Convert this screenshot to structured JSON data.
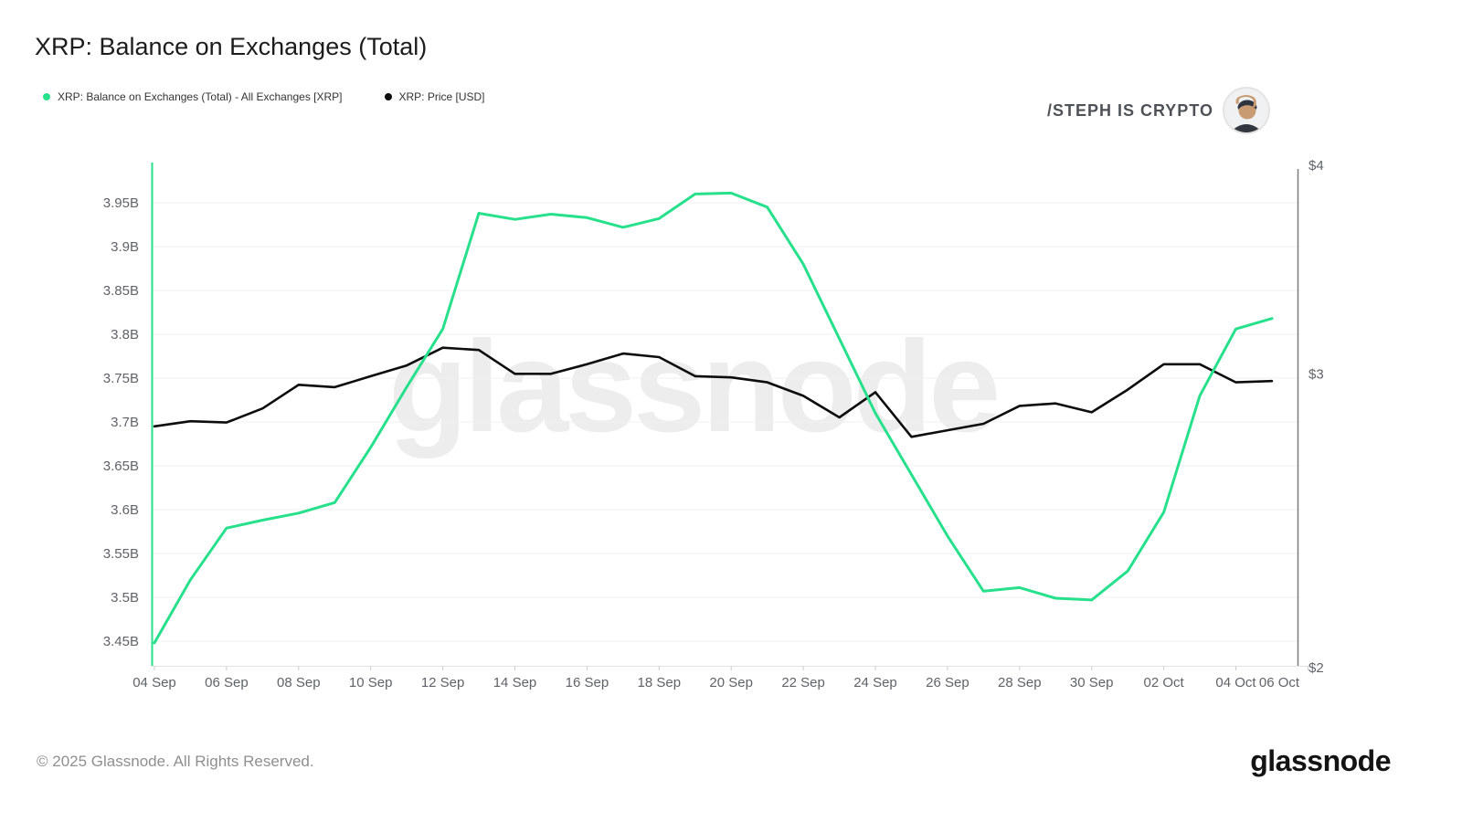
{
  "header": {
    "title": "XRP: Balance on Exchanges (Total)",
    "legend": [
      {
        "label": "XRP: Balance on Exchanges (Total) - All Exchanges [XRP]",
        "color": "#27e08b"
      },
      {
        "label": "XRP: Price [USD]",
        "color": "#0d0d0d"
      }
    ],
    "brand": {
      "name": "/STEPH IS CRYPTO",
      "avatar_icon": "man-with-cap-photo"
    }
  },
  "watermark": "glassnode",
  "footer": {
    "copyright": "© 2025 Glassnode. All Rights Reserved.",
    "logo_text": "glassnode"
  },
  "chart_data": {
    "type": "line",
    "title": "XRP: Balance on Exchanges (Total)",
    "x": [
      "04 Sep",
      "05 Sep",
      "06 Sep",
      "07 Sep",
      "08 Sep",
      "09 Sep",
      "10 Sep",
      "11 Sep",
      "12 Sep",
      "13 Sep",
      "14 Sep",
      "15 Sep",
      "16 Sep",
      "17 Sep",
      "18 Sep",
      "19 Sep",
      "20 Sep",
      "21 Sep",
      "22 Sep",
      "23 Sep",
      "24 Sep",
      "25 Sep",
      "26 Sep",
      "27 Sep",
      "28 Sep",
      "29 Sep",
      "30 Sep",
      "01 Oct",
      "02 Oct",
      "03 Oct",
      "04 Oct",
      "05 Oct"
    ],
    "series": [
      {
        "name": "XRP: Balance on Exchanges (Total) - All Exchanges [XRP]",
        "axis": "left",
        "unit": "XRP (billions)",
        "color": "#27e08b",
        "values": [
          3.448,
          3.52,
          3.579,
          3.588,
          3.596,
          3.608,
          3.671,
          3.74,
          3.806,
          3.938,
          3.931,
          3.937,
          3.933,
          3.922,
          3.932,
          3.96,
          3.961,
          3.945,
          3.88,
          3.795,
          3.71,
          3.64,
          3.57,
          3.507,
          3.511,
          3.499,
          3.497,
          3.53,
          3.597,
          3.73,
          3.806,
          3.818
        ]
      },
      {
        "name": "XRP: Price [USD]",
        "axis": "right",
        "unit": "USD",
        "color": "#0d0d0d",
        "values": [
          2.79,
          2.81,
          2.805,
          2.86,
          2.955,
          2.945,
          2.99,
          3.035,
          3.11,
          3.1,
          3.0,
          3.0,
          3.04,
          3.085,
          3.07,
          2.99,
          2.985,
          2.965,
          2.91,
          2.825,
          2.925,
          2.75,
          2.775,
          2.8,
          2.87,
          2.88,
          2.845,
          2.935,
          3.04,
          3.04,
          2.965,
          2.97
        ]
      }
    ],
    "left_axis": {
      "tick_labels": [
        "3.95B",
        "3.9B",
        "3.85B",
        "3.8B",
        "3.75B",
        "3.7B",
        "3.65B",
        "3.6B",
        "3.55B",
        "3.5B",
        "3.45B"
      ],
      "tick_values": [
        3.95,
        3.9,
        3.85,
        3.8,
        3.75,
        3.7,
        3.65,
        3.6,
        3.55,
        3.5,
        3.45
      ],
      "scale": "linear"
    },
    "right_axis": {
      "tick_labels": [
        "$4",
        "$3",
        "$2"
      ],
      "tick_values": [
        4,
        3,
        2
      ],
      "scale": "log"
    },
    "x_tick_labels": [
      "04 Sep",
      "06 Sep",
      "08 Sep",
      "10 Sep",
      "12 Sep",
      "14 Sep",
      "16 Sep",
      "18 Sep",
      "20 Sep",
      "22 Sep",
      "24 Sep",
      "26 Sep",
      "28 Sep",
      "30 Sep",
      "02 Oct",
      "04 Oct",
      "06 Oct"
    ],
    "grid": "horizontal",
    "legend_position": "top-left"
  }
}
